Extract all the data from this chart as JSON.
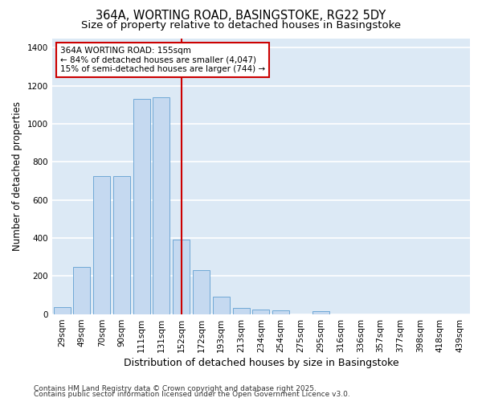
{
  "title": "364A, WORTING ROAD, BASINGSTOKE, RG22 5DY",
  "subtitle": "Size of property relative to detached houses in Basingstoke",
  "xlabel": "Distribution of detached houses by size in Basingstoke",
  "ylabel": "Number of detached properties",
  "categories": [
    "29sqm",
    "49sqm",
    "70sqm",
    "90sqm",
    "111sqm",
    "131sqm",
    "152sqm",
    "172sqm",
    "193sqm",
    "213sqm",
    "234sqm",
    "254sqm",
    "275sqm",
    "295sqm",
    "316sqm",
    "336sqm",
    "357sqm",
    "377sqm",
    "398sqm",
    "418sqm",
    "439sqm"
  ],
  "values": [
    35,
    247,
    725,
    725,
    1130,
    1140,
    390,
    230,
    90,
    30,
    22,
    18,
    0,
    15,
    0,
    0,
    0,
    0,
    0,
    0,
    0
  ],
  "bar_color": "#c5d9f0",
  "bar_edge_color": "#6fa8d6",
  "vline_x": 6,
  "vline_color": "#cc0000",
  "annotation_text": "364A WORTING ROAD: 155sqm\n← 84% of detached houses are smaller (4,047)\n15% of semi-detached houses are larger (744) →",
  "ylim": [
    0,
    1450
  ],
  "yticks": [
    0,
    200,
    400,
    600,
    800,
    1000,
    1200,
    1400
  ],
  "plot_bg_color": "#dce9f5",
  "fig_bg_color": "#ffffff",
  "grid_color": "#ffffff",
  "footer1": "Contains HM Land Registry data © Crown copyright and database right 2025.",
  "footer2": "Contains public sector information licensed under the Open Government Licence v3.0.",
  "title_fontsize": 10.5,
  "subtitle_fontsize": 9.5,
  "tick_fontsize": 7.5,
  "ylabel_fontsize": 8.5,
  "xlabel_fontsize": 9,
  "annot_fontsize": 7.5,
  "footer_fontsize": 6.5
}
